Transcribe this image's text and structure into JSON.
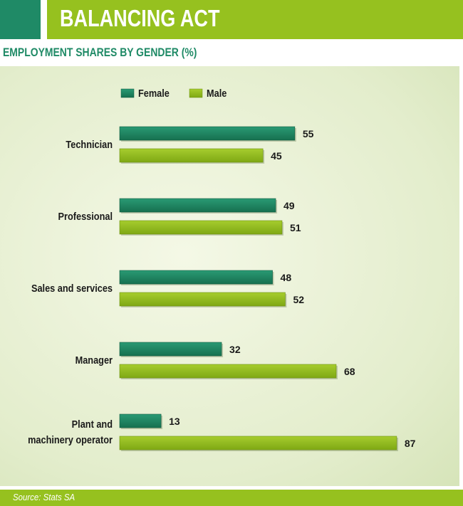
{
  "header": {
    "title": "BALANCING ACT"
  },
  "subtitle": "EMPLOYMENT SHARES BY GENDER (%)",
  "footer": {
    "source": "Source: Stats SA"
  },
  "colors": {
    "female": "#1f8a66",
    "male": "#96c11f",
    "accent_green": "#1f8a66",
    "accent_lime": "#96c11f"
  },
  "chart_data": {
    "type": "bar",
    "orientation": "horizontal",
    "title": "EMPLOYMENT SHARES BY GENDER (%)",
    "categories": [
      [
        "Technician"
      ],
      [
        "Professional"
      ],
      [
        "Sales and services"
      ],
      [
        "Manager"
      ],
      [
        "Plant and",
        "machinery operator"
      ]
    ],
    "series": [
      {
        "name": "Female",
        "values": [
          55,
          49,
          48,
          32,
          13
        ]
      },
      {
        "name": "Male",
        "values": [
          45,
          51,
          52,
          68,
          87
        ]
      }
    ],
    "xlim": [
      0,
      100
    ],
    "grid": false,
    "legend": "top-left"
  }
}
